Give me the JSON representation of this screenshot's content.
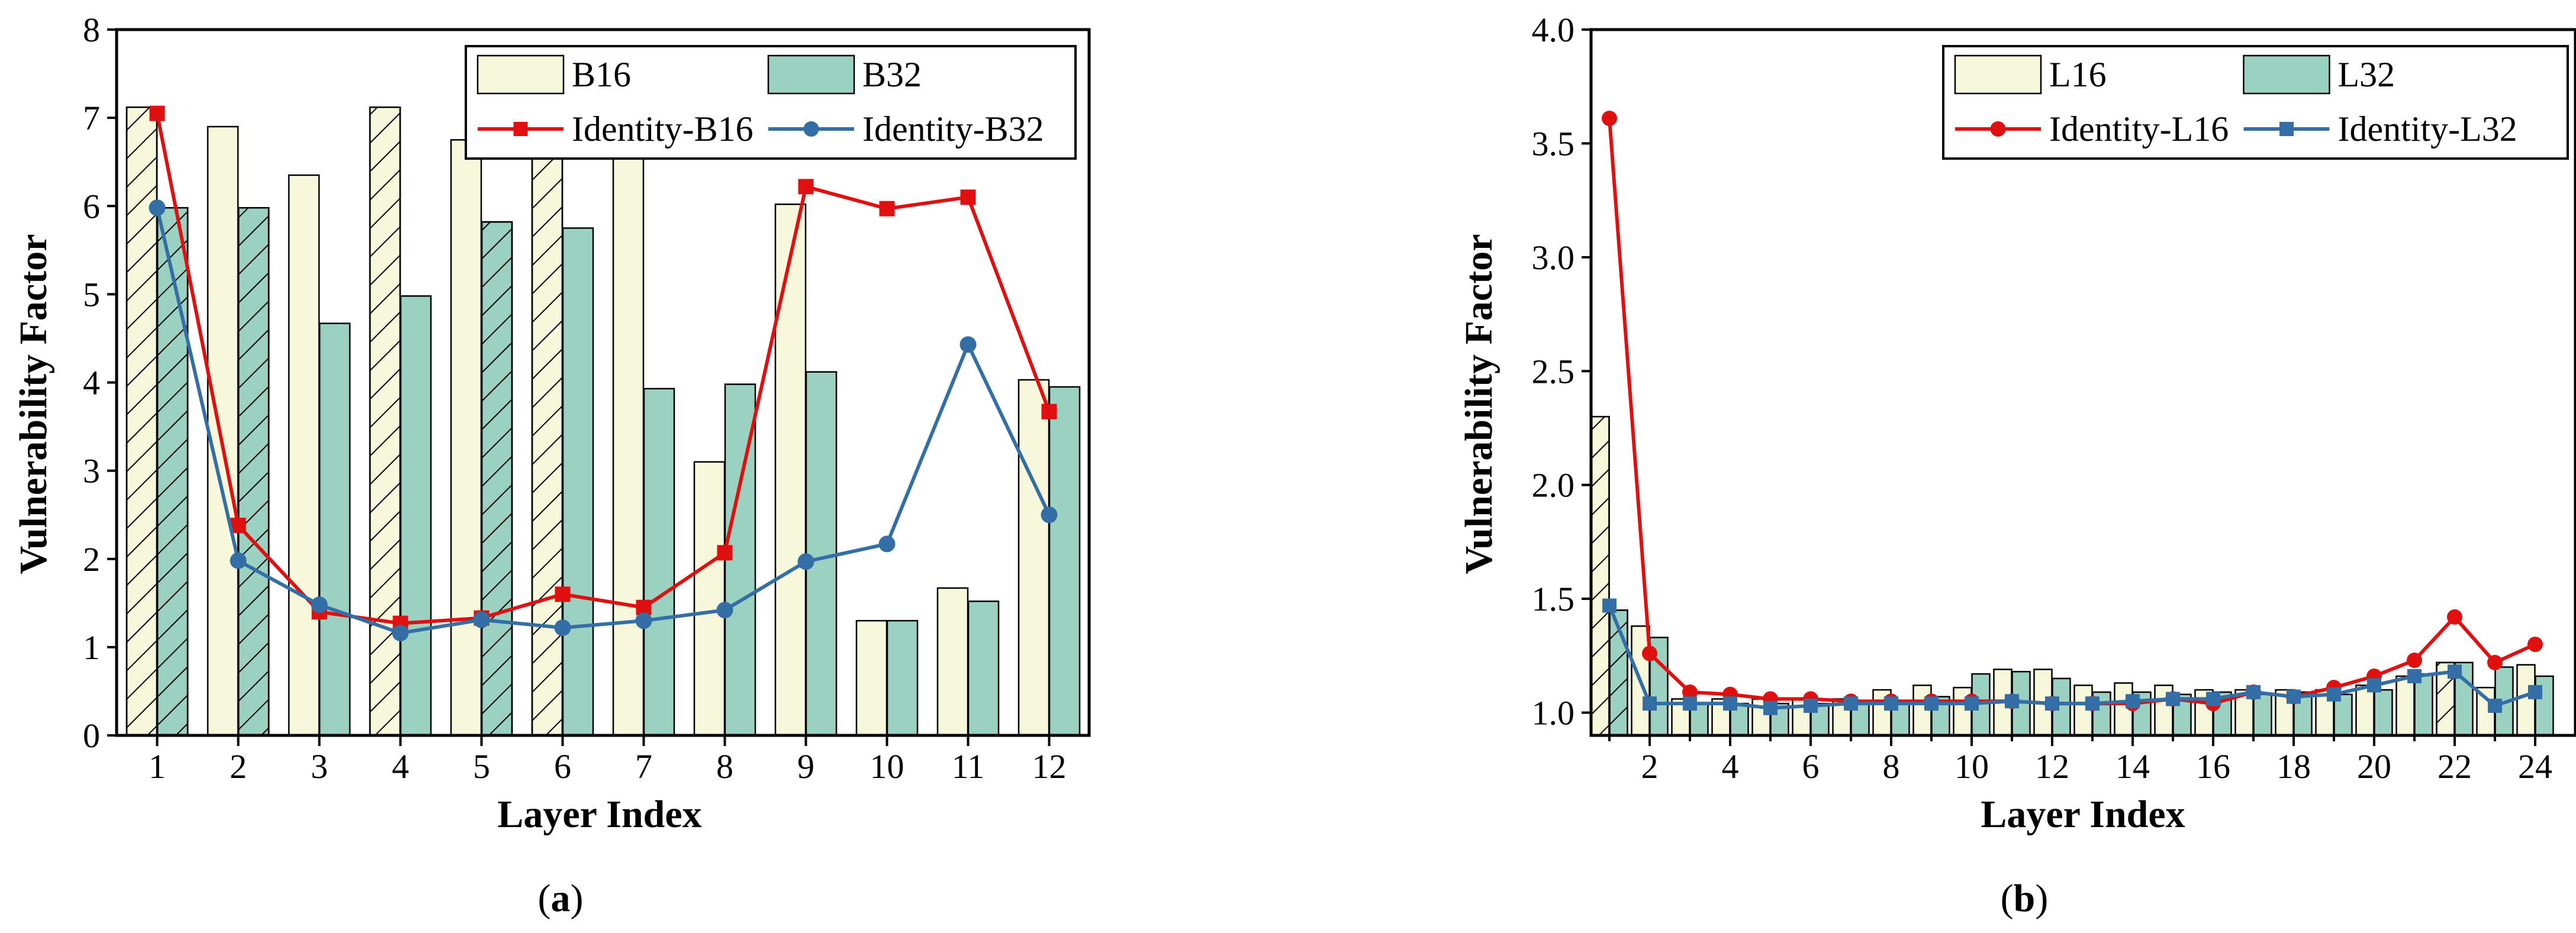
{
  "colors": {
    "bar_small": "#f7f7dc",
    "bar_large": "#9bd1c0",
    "identity_small": "#e01010",
    "identity_large": "#336fa6",
    "axis": "#000000"
  },
  "chart_data": [
    {
      "id": "a",
      "type": "bar",
      "caption_letter": "a",
      "xlabel": "Layer Index",
      "ylabel": "Vulnerability Factor",
      "ylim": [
        0,
        8
      ],
      "yticks": [
        "0",
        "1",
        "2",
        "3",
        "4",
        "5",
        "6",
        "7",
        "8"
      ],
      "categories": [
        "1",
        "2",
        "3",
        "4",
        "5",
        "6",
        "7",
        "8",
        "9",
        "10",
        "11",
        "12"
      ],
      "series": [
        {
          "name": "B16",
          "kind": "bar",
          "values": [
            7.12,
            6.9,
            6.35,
            7.12,
            6.75,
            6.85,
            6.8,
            3.1,
            6.02,
            1.3,
            1.67,
            4.03
          ]
        },
        {
          "name": "B32",
          "kind": "bar",
          "values": [
            5.98,
            5.98,
            4.67,
            4.98,
            5.82,
            5.75,
            3.93,
            3.98,
            4.12,
            1.3,
            1.52,
            3.95
          ]
        },
        {
          "name": "Identity-B16",
          "kind": "line",
          "marker": "square",
          "values": [
            7.05,
            2.38,
            1.4,
            1.27,
            1.33,
            1.6,
            1.45,
            2.07,
            6.22,
            5.97,
            6.1,
            3.67
          ]
        },
        {
          "name": "Identity-B32",
          "kind": "line",
          "marker": "circle",
          "values": [
            5.98,
            1.98,
            1.48,
            1.16,
            1.31,
            1.22,
            1.3,
            1.42,
            1.97,
            2.17,
            4.43,
            2.5
          ]
        }
      ],
      "hatched_bars": [
        {
          "series": "B16",
          "categories": [
            "1",
            "4",
            "6"
          ]
        },
        {
          "series": "B32",
          "categories": [
            "1",
            "2",
            "5"
          ]
        }
      ],
      "legend": {
        "position": "top-right",
        "entries": [
          "B16",
          "B32",
          "Identity-B16",
          "Identity-B32"
        ]
      }
    },
    {
      "id": "b",
      "type": "bar",
      "caption_letter": "b",
      "xlabel": "Layer Index",
      "ylabel": "Vulnerability Factor",
      "ylim": [
        0.9,
        4.0
      ],
      "yticks": [
        "1.0",
        "1.5",
        "2.0",
        "2.5",
        "3.0",
        "3.5",
        "4.0"
      ],
      "categories": [
        "1",
        "2",
        "3",
        "4",
        "5",
        "6",
        "7",
        "8",
        "9",
        "10",
        "11",
        "12",
        "13",
        "14",
        "15",
        "16",
        "17",
        "18",
        "19",
        "20",
        "21",
        "22",
        "23",
        "24"
      ],
      "xtick_labels": [
        "2",
        "4",
        "6",
        "8",
        "10",
        "12",
        "14",
        "16",
        "18",
        "20",
        "22",
        "24"
      ],
      "series": [
        {
          "name": "L16",
          "kind": "bar",
          "values": [
            2.3,
            1.38,
            1.06,
            1.06,
            1.06,
            1.06,
            1.06,
            1.1,
            1.12,
            1.11,
            1.19,
            1.19,
            1.12,
            1.13,
            1.12,
            1.1,
            1.1,
            1.1,
            1.1,
            1.12,
            1.16,
            1.22,
            1.11,
            1.21
          ]
        },
        {
          "name": "L32",
          "kind": "bar",
          "values": [
            1.45,
            1.33,
            1.04,
            1.04,
            1.04,
            1.04,
            1.04,
            1.05,
            1.07,
            1.17,
            1.18,
            1.15,
            1.09,
            1.09,
            1.08,
            1.09,
            1.08,
            1.09,
            1.08,
            1.1,
            1.17,
            1.22,
            1.2,
            1.16
          ]
        },
        {
          "name": "Identity-L16",
          "kind": "line",
          "marker": "circle",
          "values": [
            3.61,
            1.26,
            1.09,
            1.08,
            1.06,
            1.06,
            1.05,
            1.05,
            1.05,
            1.05,
            1.05,
            1.04,
            1.04,
            1.04,
            1.06,
            1.04,
            1.09,
            1.07,
            1.11,
            1.16,
            1.23,
            1.42,
            1.22,
            1.3
          ]
        },
        {
          "name": "Identity-L32",
          "kind": "line",
          "marker": "square",
          "values": [
            1.47,
            1.04,
            1.04,
            1.04,
            1.02,
            1.03,
            1.04,
            1.04,
            1.04,
            1.04,
            1.05,
            1.04,
            1.04,
            1.05,
            1.06,
            1.06,
            1.09,
            1.07,
            1.08,
            1.12,
            1.16,
            1.18,
            1.03,
            1.09
          ]
        }
      ],
      "hatched_bars": [
        {
          "series": "L16",
          "categories": [
            "1",
            "22"
          ]
        },
        {
          "series": "L32",
          "categories": [
            "1"
          ]
        }
      ],
      "legend": {
        "position": "top-right",
        "entries": [
          "L16",
          "L32",
          "Identity-L16",
          "Identity-L32"
        ]
      }
    }
  ]
}
